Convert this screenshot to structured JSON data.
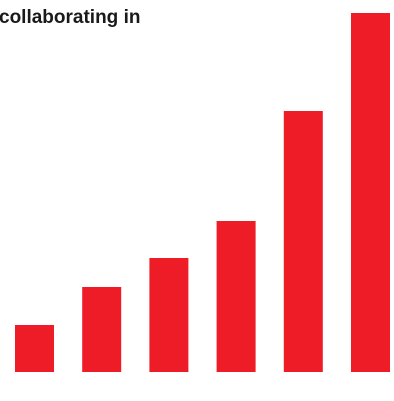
{
  "chart_data": {
    "type": "bar",
    "title": "collaborating in",
    "values": [
      47,
      85,
      114,
      151,
      261,
      359
    ],
    "color": "#ee1c27"
  }
}
